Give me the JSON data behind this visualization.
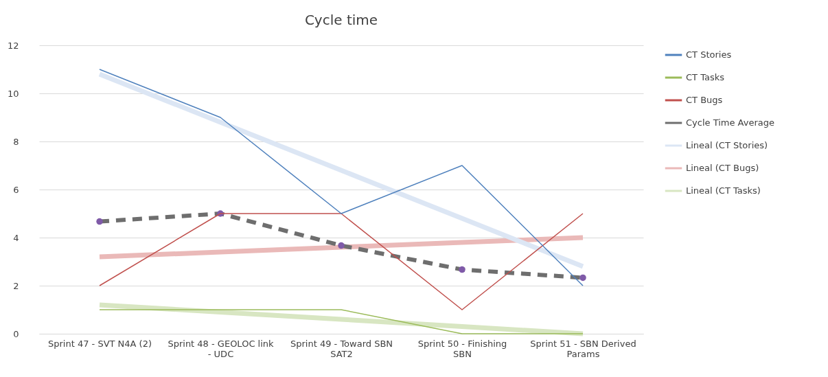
{
  "chart_data": {
    "type": "line",
    "title": "Cycle time",
    "categories": [
      "Sprint 47 - SVT N4A (2)",
      "Sprint 48 - GEOLOC link - UDC",
      "Sprint 49 - Toward SBN SAT2",
      "Sprint 50 - Finishing SBN",
      "Sprint 51 - SBN Derived Params"
    ],
    "series": [
      {
        "name": "CT Stories",
        "color": "#4f81bd",
        "values": [
          11,
          9,
          5,
          7,
          2
        ]
      },
      {
        "name": "CT Tasks",
        "color": "#9bbb59",
        "values": [
          1,
          1,
          1,
          0,
          0
        ]
      },
      {
        "name": "CT Bugs",
        "color": "#c0504d",
        "values": [
          2,
          5,
          5,
          1,
          5
        ]
      },
      {
        "name": "Cycle Time Average",
        "color": "#6e6e6e",
        "values": [
          4.67,
          5,
          3.67,
          2.67,
          2.33
        ],
        "marker": "circle",
        "line_style": "dashed"
      },
      {
        "name": "Lineal (CT Stories)",
        "color": "#dce6f4",
        "values": [
          10.8,
          8.8,
          6.8,
          4.8,
          2.8
        ]
      },
      {
        "name": "Lineal (CT Bugs)",
        "color": "#eab9b8",
        "values": [
          3.2,
          3.4,
          3.6,
          3.8,
          4.0
        ]
      },
      {
        "name": "Lineal (CT Tasks)",
        "color": "#d8e6c2",
        "values": [
          1.2,
          0.9,
          0.6,
          0.3,
          0.0
        ]
      }
    ],
    "ylim": [
      0,
      12
    ],
    "yticks": [
      0,
      2,
      4,
      6,
      8,
      10,
      12
    ],
    "grid": "y",
    "legend": "right"
  }
}
